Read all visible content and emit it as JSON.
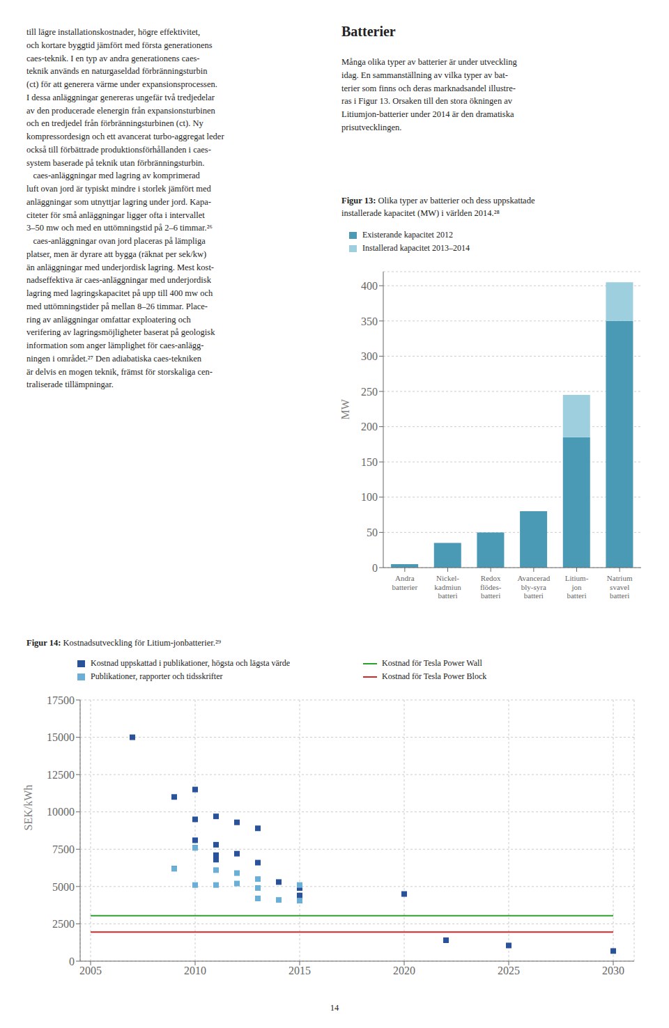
{
  "chart_data": [
    {
      "type": "bar",
      "title": "Figur 13: Olika typer av batterier och dess uppskattade\ninstallerade kapacitet (MW) i världen 2014.²⁸",
      "categories": [
        "Andra\nbatterier",
        "Nickel-\nkadmiun\nbatteri",
        "Redox\nflödes-\nbatteri",
        "Avancerad\nbly-syra\nbatteri",
        "Litium-\njon\nbatteri",
        "Natrium\nsvavel\nbatteri"
      ],
      "series": [
        {
          "name": "Existerande kapacitet 2012",
          "color": "#4a9ab5",
          "values": [
            5,
            35,
            50,
            80,
            185,
            350
          ]
        },
        {
          "name": "Installerad kapacitet 2013–2014",
          "color": "#9dcfdf",
          "values": [
            0,
            0,
            0,
            0,
            60,
            55
          ]
        }
      ],
      "stacked": true,
      "ylabel": "MW",
      "ylim": [
        0,
        420
      ],
      "yticks": [
        0,
        50,
        100,
        150,
        200,
        250,
        300,
        350,
        400
      ],
      "grid": "y",
      "legend": "upper left",
      "annotations": [
        "till lägre installationskostnader, högre effektivitet,\noch kortare byggtid jämfört med första generationens\ncaes-teknik. I en typ av andra generationens caes-\nteknik används en naturgaseldad förbränningsturbin\n(ct) för att generera värme under expansionsprocessen.\nI dessa anläggningar genereras ungefär två tredjedelar\nav den producerade elenergin från expansionsturbinen\noch en tredjedel från förbränningsturbinen (ct). Ny\nkompressordesign och ett avancerat turbo-aggregat leder\nockså till förbättrade produktionsförhållanden i caes-\nsystem baserade på teknik utan förbränningsturbin.\n   caes-anläggningar med lagring av komprimerad\nluft ovan jord är typiskt mindre i storlek jämfört med\nanläggningar som utnyttjar lagring under jord. Kapa-\nciteter för små anläggningar ligger ofta i intervallet\n3–50 mw och med en uttömningstid på 2–6 timmar.²⁶\n   caes-anläggningar ovan jord placeras på lämpliga\nplatser, men är dyrare att bygga (räknat per sek/kw)\nän anläggningar med underjordisk lagring. Mest kost-\nnadseffektiva är caes-anläggningar med underjordisk\nlagring med lagringskapacitet på upp till 400 mw och\nmed uttömningstider på mellan 8–26 timmar. Place-\nring av anläggningar omfattar exploatering och\nverifering av lagringsmöjligheter baserat på geologisk\ninformation som anger lämplighet för caes-anlägg-\nningen i området.²⁷ Den adiabatiska caes-tekniken\när delvis en mogen teknik, främst för storskaliga cen-\ntraliserade tillämpningar.",
        "Batterier",
        "Många olika typer av batterier är under utveckling\nidag. En sammanställning av vilka typer av bat-\nterier som finns och deras marknadsandel illustre-\nras i Figur 13. Orsaken till den stora ökningen av\nLitiumjon-batterier under 2014 är den dramatiska\nprisutvecklingen."
      ]
    },
    {
      "type": "scatter",
      "title": "Figur 14: Kostnadsutveckling för Litium-jonbatterier.²⁹",
      "ylabel": "SEK/kWh",
      "xlim": [
        2004.5,
        2031
      ],
      "xticks": [
        2005,
        2010,
        2015,
        2020,
        2025,
        2030
      ],
      "ylim": [
        0,
        17500
      ],
      "yticks": [
        0,
        2500,
        5000,
        7500,
        10000,
        12500,
        15000,
        17500
      ],
      "grid": true,
      "legend": "upper left",
      "series": [
        {
          "name": "Kostnad uppskattad i publikationer, högsta och lägsta värde",
          "type": "scatter",
          "marker": "square",
          "color": "#2a5298",
          "x": [
            2007,
            2009,
            2009,
            2010,
            2010,
            2010,
            2010,
            2011,
            2011,
            2011,
            2011,
            2012,
            2012,
            2013,
            2013,
            2014,
            2015,
            2015,
            2020,
            2022,
            2025,
            2030
          ],
          "values": [
            15000,
            11000,
            6200,
            11500,
            9500,
            8100,
            7600,
            9700,
            7800,
            7100,
            6800,
            9300,
            7200,
            8900,
            6600,
            5300,
            4900,
            4400,
            4500,
            1400,
            1050,
            680
          ]
        },
        {
          "name": "Kostnad för Tesla Power Wall",
          "type": "line",
          "color": "#2ca02c",
          "x": [
            2005,
            2030
          ],
          "values": [
            3050,
            3050
          ]
        },
        {
          "name": "Publikationer, rapporter och tidsskrifter",
          "type": "scatter",
          "marker": "square",
          "color": "#6baed6",
          "x": [
            2009,
            2010,
            2010,
            2011,
            2011,
            2012,
            2012,
            2013,
            2013,
            2013,
            2014,
            2015,
            2015
          ],
          "values": [
            6200,
            7600,
            5100,
            6100,
            5100,
            5900,
            5200,
            5500,
            4900,
            4200,
            4100,
            4050,
            5100
          ]
        },
        {
          "name": "Kostnad för Tesla Power Block",
          "type": "line",
          "color": "#d62728",
          "x": [
            2005,
            2030
          ],
          "values": [
            1950,
            1950
          ]
        }
      ],
      "annotations": [
        "14"
      ]
    }
  ]
}
